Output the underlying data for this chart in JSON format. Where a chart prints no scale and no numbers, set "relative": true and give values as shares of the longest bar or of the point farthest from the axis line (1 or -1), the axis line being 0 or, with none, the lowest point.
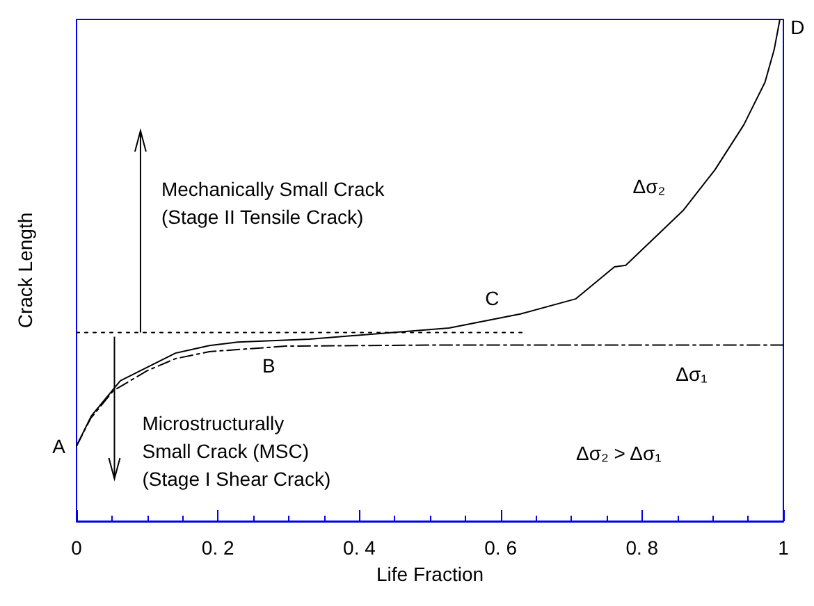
{
  "chart_data": {
    "type": "line",
    "relative": true,
    "xlabel": "Life Fraction",
    "ylabel": "Crack Length",
    "xlim": [
      0,
      1
    ],
    "xticks": [
      0,
      0.2,
      0.4,
      0.6,
      0.8,
      1
    ],
    "tick_labels": "x",
    "grid": false,
    "marker": "none",
    "series": [
      {
        "color": "#000000",
        "line_style": "solid",
        "x": [
          0,
          0.021,
          0.062,
          0.14,
          0.188,
          0.228,
          0.33,
          0.527,
          0.628,
          0.706,
          0.761,
          0.777,
          0.858,
          0.903,
          0.944,
          0.974,
          0.987,
          0.995
        ],
        "values": [
          0.15,
          0.21,
          0.28,
          0.335,
          0.35,
          0.357,
          0.363,
          0.385,
          0.413,
          0.443,
          0.507,
          0.51,
          0.619,
          0.7,
          0.79,
          0.875,
          0.94,
          1
        ]
      },
      {
        "color": "#000000",
        "line_style": "dashed",
        "x": [
          0,
          0.02,
          0.052,
          0.1,
          0.14,
          0.188,
          0.296,
          0.5,
          1
        ],
        "values": [
          0.15,
          0.205,
          0.26,
          0.3,
          0.324,
          0.338,
          0.349,
          0.351,
          0.351
        ]
      },
      {
        "color": "#000000",
        "line_style": "dotted",
        "x": [
          0,
          0.63
        ],
        "values": [
          0.376,
          0.376
        ]
      }
    ],
    "annotations": [
      "A",
      "B",
      "C",
      "D",
      "Δσ₂",
      "Δσ₁",
      "Δσ₂ > Δσ₁",
      "Mechanically Small Crack\n(Stage II Tensile Crack)",
      "Microstructurally\nSmall Crack (MSC)\n(Stage I Shear Crack)"
    ]
  }
}
